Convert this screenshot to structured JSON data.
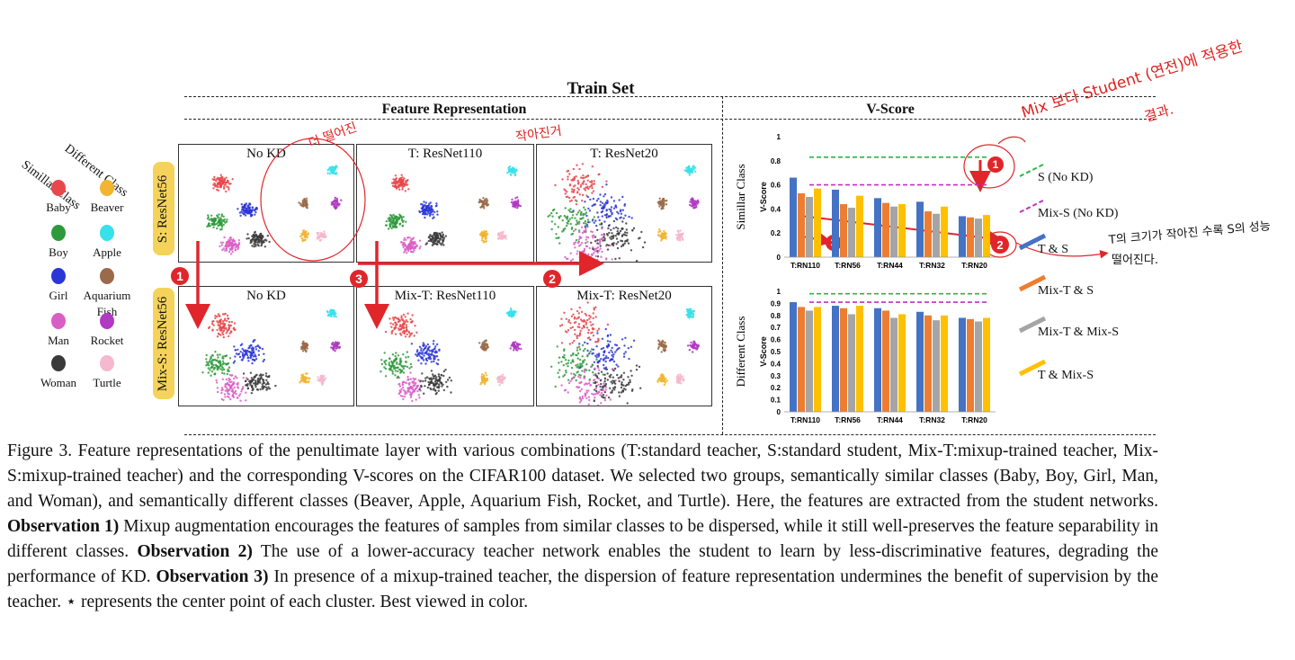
{
  "header": {
    "train_set": "Train Set",
    "feature_representation": "Feature Representation",
    "v_score": "V-Score"
  },
  "row_labels": {
    "top": "S: ResNet56",
    "bottom": "Mix-S: ResNet56"
  },
  "panels": {
    "top": [
      "No KD",
      "T: ResNet110",
      "T: ResNet20"
    ],
    "bottom": [
      "No KD",
      "Mix-T: ResNet110",
      "Mix-T: ResNet20"
    ]
  },
  "class_legend": {
    "similar_header": "Simillar Class",
    "different_header": "Different Class",
    "similar": [
      {
        "name": "Baby",
        "color": "#e8474b"
      },
      {
        "name": "Boy",
        "color": "#2e9a3c"
      },
      {
        "name": "Girl",
        "color": "#2a36d6"
      },
      {
        "name": "Man",
        "color": "#d95fc7"
      },
      {
        "name": "Woman",
        "color": "#3a3a3a"
      }
    ],
    "different": [
      {
        "name": "Beaver",
        "color": "#f2b531"
      },
      {
        "name": "Apple",
        "color": "#36e1ea"
      },
      {
        "name": "Aquarium Fish",
        "color": "#9a6a4a"
      },
      {
        "name": "Rocket",
        "color": "#b03ac2"
      },
      {
        "name": "Turtle",
        "color": "#f5b8ce"
      }
    ]
  },
  "markers": [
    "1",
    "2",
    "3"
  ],
  "handwriting": {
    "top_right": "Mix 보다 Student (연전)에 적용한",
    "top_right_2": "결과.",
    "no_kd_note": "더 떨어진",
    "rn20_note": "작아진거",
    "right_note": "T의 크기가 작아진 수록 S의 성능",
    "right_note_2": "떨어진다."
  },
  "chart_data": [
    {
      "type": "bar",
      "title": "",
      "xlabel": "Simillar Class",
      "ylabel": "V-Score",
      "categories": [
        "T:RN110",
        "T:RN56",
        "T:RN44",
        "T:RN32",
        "T:RN20"
      ],
      "ylim": [
        0,
        1
      ],
      "yticks": [
        "0",
        "0.2",
        "0.4",
        "0.6",
        "0.8",
        "1"
      ],
      "series": [
        {
          "name": "T & S",
          "values": [
            0.66,
            0.56,
            0.49,
            0.46,
            0.34
          ],
          "color": "#4472c4"
        },
        {
          "name": "Mix-T & S",
          "values": [
            0.53,
            0.44,
            0.45,
            0.38,
            0.33
          ],
          "color": "#ed7d31"
        },
        {
          "name": "Mix-T & Mix-S",
          "values": [
            0.5,
            0.41,
            0.42,
            0.36,
            0.32
          ],
          "color": "#a5a5a5"
        },
        {
          "name": "T & Mix-S",
          "values": [
            0.57,
            0.51,
            0.44,
            0.42,
            0.35
          ],
          "color": "#ffc000"
        }
      ],
      "reference_lines": [
        {
          "name": "S (No KD)",
          "value": 0.83,
          "color": "#2db34a"
        },
        {
          "name": "Mix-S (No KD)",
          "value": 0.6,
          "color": "#c42fc4"
        }
      ]
    },
    {
      "type": "bar",
      "title": "",
      "xlabel": "Different Class",
      "ylabel": "V-Score",
      "categories": [
        "T:RN110",
        "T:RN56",
        "T:RN44",
        "T:RN32",
        "T:RN20"
      ],
      "ylim": [
        0,
        1
      ],
      "yticks": [
        "0",
        "0.1",
        "0.2",
        "0.3",
        "0.4",
        "0.5",
        "0.6",
        "0.7",
        "0.8",
        "0.9",
        "1"
      ],
      "series": [
        {
          "name": "T & S",
          "values": [
            0.91,
            0.88,
            0.86,
            0.83,
            0.78
          ],
          "color": "#4472c4"
        },
        {
          "name": "Mix-T & S",
          "values": [
            0.87,
            0.86,
            0.84,
            0.8,
            0.77
          ],
          "color": "#ed7d31"
        },
        {
          "name": "Mix-T & Mix-S",
          "values": [
            0.84,
            0.81,
            0.78,
            0.76,
            0.75
          ],
          "color": "#a5a5a5"
        },
        {
          "name": "T & Mix-S",
          "values": [
            0.87,
            0.88,
            0.81,
            0.8,
            0.78
          ],
          "color": "#ffc000"
        }
      ],
      "reference_lines": [
        {
          "name": "S (No KD)",
          "value": 0.98,
          "color": "#2db34a"
        },
        {
          "name": "Mix-S (No KD)",
          "value": 0.91,
          "color": "#c42fc4"
        }
      ]
    }
  ],
  "caption": {
    "p1": "Figure 3. Feature representations of the penultimate layer with various combinations (T:standard teacher, S:standard student, Mix-T:mixup-trained teacher, Mix-S:mixup-trained teacher) and the corresponding V-scores on the CIFAR100 dataset. We selected two groups, semantically similar classes (Baby, Boy, Girl, Man, and Woman), and semantically different classes (Beaver, Apple, Aquarium Fish, Rocket, and Turtle). Here, the features are extracted from the student networks.",
    "obs1_label": "Observation 1)",
    "obs1": "Mixup augmentation encourages the features of samples from similar classes to be dispersed, while it still well-preserves the feature separability in different classes.",
    "obs2_label": "Observation 2)",
    "obs2": "The use of a lower-accuracy teacher network enables the student to learn by less-discriminative features, degrading the performance of KD.",
    "obs3_label": "Observation 3)",
    "obs3": "In presence of a mixup-trained teacher, the dispersion of feature representation undermines the benefit of supervision by the teacher. ⋆ represents the center point of each cluster. Best viewed in color."
  }
}
